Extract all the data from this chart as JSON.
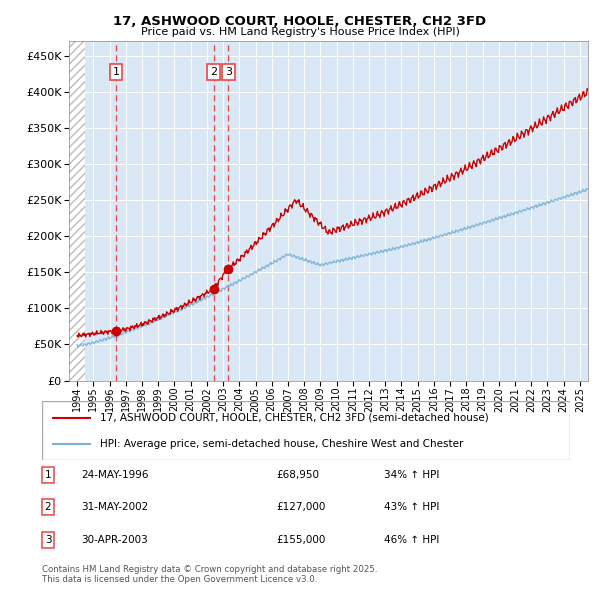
{
  "title1": "17, ASHWOOD COURT, HOOLE, CHESTER, CH2 3FD",
  "title2": "Price paid vs. HM Land Registry's House Price Index (HPI)",
  "legend_line1": "17, ASHWOOD COURT, HOOLE, CHESTER, CH2 3FD (semi-detached house)",
  "legend_line2": "HPI: Average price, semi-detached house, Cheshire West and Chester",
  "footer": "Contains HM Land Registry data © Crown copyright and database right 2025.\nThis data is licensed under the Open Government Licence v3.0.",
  "sales": [
    {
      "label": "1",
      "date": "24-MAY-1996",
      "price": 68950,
      "hpi_pct": "34% ↑ HPI",
      "x": 1996.39
    },
    {
      "label": "2",
      "date": "31-MAY-2002",
      "price": 127000,
      "hpi_pct": "43% ↑ HPI",
      "x": 2002.41
    },
    {
      "label": "3",
      "date": "30-APR-2003",
      "price": 155000,
      "hpi_pct": "46% ↑ HPI",
      "x": 2003.33
    }
  ],
  "hpi_color": "#7BAFD4",
  "price_color": "#CC0000",
  "vline_color": "#EE4444",
  "background_color": "#DAE8F5",
  "ylim": [
    0,
    470000
  ],
  "xlim_start": 1993.5,
  "xlim_end": 2025.5,
  "yticks": [
    0,
    50000,
    100000,
    150000,
    200000,
    250000,
    300000,
    350000,
    400000,
    450000
  ]
}
